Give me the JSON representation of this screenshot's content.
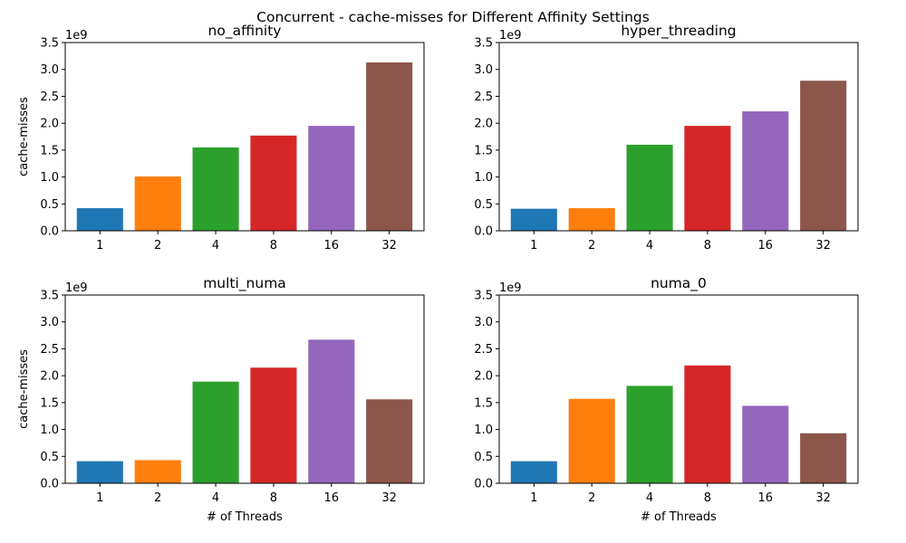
{
  "figure": {
    "suptitle": "Concurrent - cache-misses for Different Affinity Settings"
  },
  "colors": {
    "series": [
      "#1f77b4",
      "#ff7f0e",
      "#2ca02c",
      "#d62728",
      "#9467bd",
      "#8c564b"
    ]
  },
  "chart_data": [
    {
      "type": "bar",
      "title": "no_affinity",
      "categories": [
        "1",
        "2",
        "4",
        "8",
        "16",
        "32"
      ],
      "values": [
        420000000,
        1010000000,
        1550000000,
        1770000000,
        1950000000,
        3130000000
      ],
      "xlabel": "",
      "ylabel": "cache-misses",
      "ylim": [
        0,
        3500000000
      ],
      "yticks": [
        "0.0",
        "0.5",
        "1.0",
        "1.5",
        "2.0",
        "2.5",
        "3.0",
        "3.5"
      ],
      "offset_text": "1e9"
    },
    {
      "type": "bar",
      "title": "hyper_threading",
      "categories": [
        "1",
        "2",
        "4",
        "8",
        "16",
        "32"
      ],
      "values": [
        410000000,
        420000000,
        1600000000,
        1950000000,
        2220000000,
        2790000000
      ],
      "xlabel": "",
      "ylabel": "",
      "ylim": [
        0,
        3500000000
      ],
      "yticks": [
        "0.0",
        "0.5",
        "1.0",
        "1.5",
        "2.0",
        "2.5",
        "3.0",
        "3.5"
      ],
      "offset_text": "1e9"
    },
    {
      "type": "bar",
      "title": "multi_numa",
      "categories": [
        "1",
        "2",
        "4",
        "8",
        "16",
        "32"
      ],
      "values": [
        410000000,
        430000000,
        1890000000,
        2150000000,
        2670000000,
        1560000000
      ],
      "xlabel": "# of Threads",
      "ylabel": "cache-misses",
      "ylim": [
        0,
        3500000000
      ],
      "yticks": [
        "0.0",
        "0.5",
        "1.0",
        "1.5",
        "2.0",
        "2.5",
        "3.0",
        "3.5"
      ],
      "offset_text": "1e9"
    },
    {
      "type": "bar",
      "title": "numa_0",
      "categories": [
        "1",
        "2",
        "4",
        "8",
        "16",
        "32"
      ],
      "values": [
        410000000,
        1570000000,
        1810000000,
        2190000000,
        1440000000,
        930000000
      ],
      "xlabel": "# of Threads",
      "ylabel": "",
      "ylim": [
        0,
        3500000000
      ],
      "yticks": [
        "0.0",
        "0.5",
        "1.0",
        "1.5",
        "2.0",
        "2.5",
        "3.0",
        "3.5"
      ],
      "offset_text": "1e9"
    }
  ]
}
